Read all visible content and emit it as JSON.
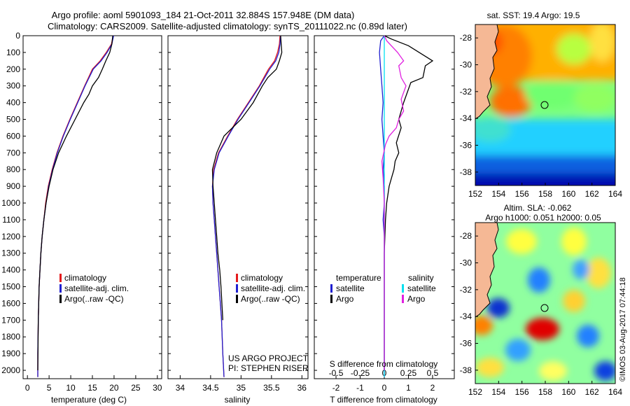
{
  "header": {
    "line1": "Argo profile: aoml 5901093_184 21-Oct-2011 32.884S 157.948E (DM data)",
    "line2": "Climatology: CARS2009. Satellite-adjusted climatology: synTS_20111022.nc (0.89d later)"
  },
  "legend_tc": {
    "items": [
      {
        "label": "climatology",
        "color": "#e41a1c"
      },
      {
        "label": "satellite-adj. clim.",
        "color": "#1f1fd0"
      },
      {
        "label": "Argo(..raw -QC)",
        "color": "#000000"
      }
    ]
  },
  "legend_diff": {
    "col1_title": "temperature",
    "col2_title": "salinity",
    "items": [
      {
        "label": "satellite",
        "color": "#1f1fd0"
      },
      {
        "label": "Argo",
        "color": "#000000"
      },
      {
        "label": "satellite",
        "color": "#00e0f0"
      },
      {
        "label": "Argo",
        "color": "#e020e0"
      }
    ]
  },
  "project": {
    "line1": "US ARGO PROJECT",
    "line2": "PI: STEPHEN RISER"
  },
  "sst_map": {
    "title": "sat. SST: 19.4  Argo: 19.5"
  },
  "sla_map": {
    "title1": "Altim. SLA: -0.062",
    "title2": "Argo h1000: 0.051  h2000: 0.05"
  },
  "credit": "©IMOS 03-Aug-2017 07:44:18",
  "chart_data": [
    {
      "type": "line",
      "xlabel": "temperature (deg C)",
      "ylabel": "",
      "xlim": [
        -1,
        31
      ],
      "ylim": [
        2050,
        0
      ],
      "xticks": [
        "0",
        "5",
        "10",
        "15",
        "20",
        "25",
        "30"
      ],
      "yticks": [
        "0",
        "100",
        "200",
        "300",
        "400",
        "500",
        "600",
        "700",
        "800",
        "900",
        "1000",
        "1100",
        "1200",
        "1300",
        "1400",
        "1500",
        "1600",
        "1700",
        "1800",
        "1900",
        "2000"
      ],
      "series": [
        {
          "name": "climatology",
          "color": "#e41a1c",
          "x": [
            19.8,
            19.4,
            18.2,
            16.8,
            15.0,
            13.2,
            11.5,
            9.8,
            8.2,
            6.8,
            5.7,
            4.8,
            4.2,
            3.8,
            3.4,
            3.1,
            2.9,
            2.7,
            2.6,
            2.5,
            2.4,
            2.4
          ],
          "y": [
            0,
            50,
            100,
            150,
            200,
            300,
            400,
            500,
            600,
            700,
            800,
            900,
            1000,
            1100,
            1200,
            1300,
            1400,
            1500,
            1600,
            1700,
            1900,
            2040
          ]
        },
        {
          "name": "satellite-adj. clim.",
          "color": "#1f1fd0",
          "x": [
            19.9,
            19.5,
            18.4,
            17.0,
            15.2,
            13.3,
            11.6,
            9.9,
            8.3,
            6.9,
            5.8,
            4.9,
            4.3,
            3.8,
            3.4,
            3.1,
            2.9,
            2.7,
            2.6,
            2.5,
            2.4,
            2.4
          ],
          "y": [
            0,
            50,
            100,
            150,
            200,
            300,
            400,
            500,
            600,
            700,
            800,
            900,
            1000,
            1100,
            1200,
            1300,
            1400,
            1500,
            1600,
            1700,
            1900,
            2040
          ]
        },
        {
          "name": "Argo(..raw -QC)",
          "color": "#000000",
          "x": [
            19.7,
            19.5,
            19.0,
            18.1,
            17.3,
            16.4,
            15.0,
            14.2,
            13.0,
            11.0,
            9.0,
            7.2,
            5.9,
            5.0,
            4.3,
            3.8,
            3.4,
            3.1,
            2.9,
            2.7,
            2.5,
            2.4
          ],
          "y": [
            0,
            50,
            100,
            150,
            200,
            250,
            300,
            350,
            400,
            500,
            600,
            700,
            800,
            900,
            1000,
            1100,
            1200,
            1300,
            1400,
            1500,
            1700,
            2000
          ]
        }
      ]
    },
    {
      "type": "line",
      "xlabel": "salinity",
      "ylabel": "",
      "xlim": [
        33.8,
        36.1
      ],
      "ylim": [
        2050,
        0
      ],
      "xticks": [
        "34",
        "34.5",
        "35",
        "35.5",
        "36"
      ],
      "series": [
        {
          "name": "climatology",
          "color": "#e41a1c",
          "x": [
            35.64,
            35.63,
            35.6,
            35.55,
            35.45,
            35.3,
            35.12,
            34.94,
            34.78,
            34.63,
            34.55,
            34.53,
            34.54,
            34.56,
            34.58,
            34.6,
            34.62,
            34.64,
            34.66,
            34.68,
            34.7,
            34.72
          ],
          "y": [
            0,
            50,
            100,
            150,
            200,
            300,
            400,
            500,
            600,
            700,
            800,
            900,
            1000,
            1100,
            1200,
            1300,
            1400,
            1500,
            1600,
            1700,
            1900,
            2040
          ]
        },
        {
          "name": "satellite-adj. clim.",
          "color": "#1f1fd0",
          "x": [
            35.65,
            35.64,
            35.62,
            35.57,
            35.47,
            35.31,
            35.13,
            34.95,
            34.79,
            34.64,
            34.56,
            34.53,
            34.54,
            34.56,
            34.58,
            34.6,
            34.62,
            34.64,
            34.66,
            34.68,
            34.7,
            34.72
          ],
          "y": [
            0,
            50,
            100,
            150,
            200,
            300,
            400,
            500,
            600,
            700,
            800,
            900,
            1000,
            1100,
            1200,
            1300,
            1400,
            1500,
            1600,
            1700,
            1900,
            2040
          ]
        },
        {
          "name": "Argo(..raw -QC)",
          "color": "#000000",
          "x": [
            35.65,
            35.66,
            35.67,
            35.63,
            35.58,
            35.44,
            35.35,
            35.2,
            35.0,
            34.72,
            34.6,
            34.53,
            34.54,
            34.56,
            34.58,
            34.6,
            34.62,
            34.65,
            34.67,
            34.7
          ],
          "y": [
            0,
            50,
            100,
            150,
            200,
            250,
            300,
            400,
            500,
            600,
            700,
            800,
            900,
            1000,
            1100,
            1200,
            1300,
            1400,
            1500,
            1700
          ]
        }
      ]
    },
    {
      "type": "line",
      "xlabel": "T difference from climatology",
      "x2label": "S difference from climatology",
      "ylabel": "",
      "xlim": [
        -2.9,
        2.9
      ],
      "ylim": [
        2050,
        0
      ],
      "xticks": [
        "-2",
        "-1",
        "0",
        "1",
        "2"
      ],
      "x2ticks": [
        "-0.5",
        "-0.25",
        "0",
        "0.25",
        "0.5"
      ],
      "series": [
        {
          "name": "temperature satellite",
          "color": "#1f1fd0",
          "x": [
            0.0,
            -0.15,
            -0.2,
            -0.15,
            -0.1,
            -0.05,
            -0.1,
            -0.05,
            0.0,
            -0.05,
            0.0,
            0.0,
            -0.05,
            0.0,
            0.0,
            0.0,
            0.0,
            0.0,
            0.0,
            0.0,
            0.0
          ],
          "y": [
            0,
            30,
            100,
            200,
            300,
            400,
            500,
            600,
            700,
            800,
            900,
            1000,
            1100,
            1200,
            1300,
            1400,
            1500,
            1600,
            1700,
            1900,
            2040
          ]
        },
        {
          "name": "temperature Argo",
          "color": "#000000",
          "x": [
            0.0,
            0.3,
            1.0,
            2.0,
            1.7,
            1.6,
            1.1,
            0.8,
            0.6,
            0.7,
            0.5,
            0.6,
            0.45,
            0.4,
            0.3,
            0.2,
            0.1,
            0.05,
            0.0,
            0.0,
            0.0,
            0.0,
            0.0
          ],
          "y": [
            0,
            20,
            60,
            150,
            180,
            250,
            280,
            400,
            500,
            550,
            640,
            700,
            750,
            800,
            850,
            900,
            1000,
            1100,
            1300,
            1500,
            1700,
            1900,
            2000
          ]
        },
        {
          "name": "salinity satellite",
          "color": "#00e0f0",
          "x": [
            0.0,
            0.0,
            0.0,
            0.0,
            0.0,
            0.0,
            0.0,
            0.0,
            0.0,
            0.0,
            0.0,
            0.0,
            0.0,
            0.0,
            0.0,
            0.0,
            0.0,
            0.0,
            0.0,
            0.0,
            0.0
          ],
          "y": [
            0,
            30,
            100,
            200,
            300,
            400,
            500,
            600,
            700,
            800,
            900,
            1000,
            1100,
            1200,
            1300,
            1400,
            1500,
            1600,
            1700,
            1900,
            2040
          ]
        },
        {
          "name": "salinity Argo",
          "color": "#e020e0",
          "x": [
            0.0,
            0.1,
            0.55,
            0.8,
            0.6,
            0.7,
            0.9,
            0.7,
            0.8,
            0.6,
            0.5,
            0.2,
            0.05,
            -0.1,
            -0.05,
            0.0,
            0.0,
            0.0,
            0.0,
            0.0,
            0.0
          ],
          "y": [
            0,
            30,
            100,
            150,
            180,
            250,
            300,
            380,
            450,
            500,
            550,
            600,
            650,
            750,
            850,
            1000,
            1200,
            1400,
            1600,
            1800,
            2000
          ]
        }
      ]
    },
    {
      "type": "heatmap",
      "title": "sat. SST: 19.4  Argo: 19.5",
      "xlim": [
        152,
        164
      ],
      "ylim": [
        -39,
        -27
      ],
      "xticks": [
        "152",
        "154",
        "156",
        "158",
        "160",
        "162",
        "164"
      ],
      "yticks": [
        "-28",
        "-30",
        "-32",
        "-34",
        "-36",
        "-38"
      ],
      "argo_position": [
        157.95,
        -32.88
      ]
    },
    {
      "type": "heatmap",
      "title": "Altim. SLA: -0.062",
      "xlim": [
        152,
        164
      ],
      "ylim": [
        -39,
        -27
      ],
      "xticks": [
        "152",
        "154",
        "156",
        "158",
        "160",
        "162",
        "164"
      ],
      "yticks": [
        "-28",
        "-30",
        "-32",
        "-34",
        "-36",
        "-38"
      ],
      "argo_position": [
        157.95,
        -32.88
      ]
    }
  ]
}
